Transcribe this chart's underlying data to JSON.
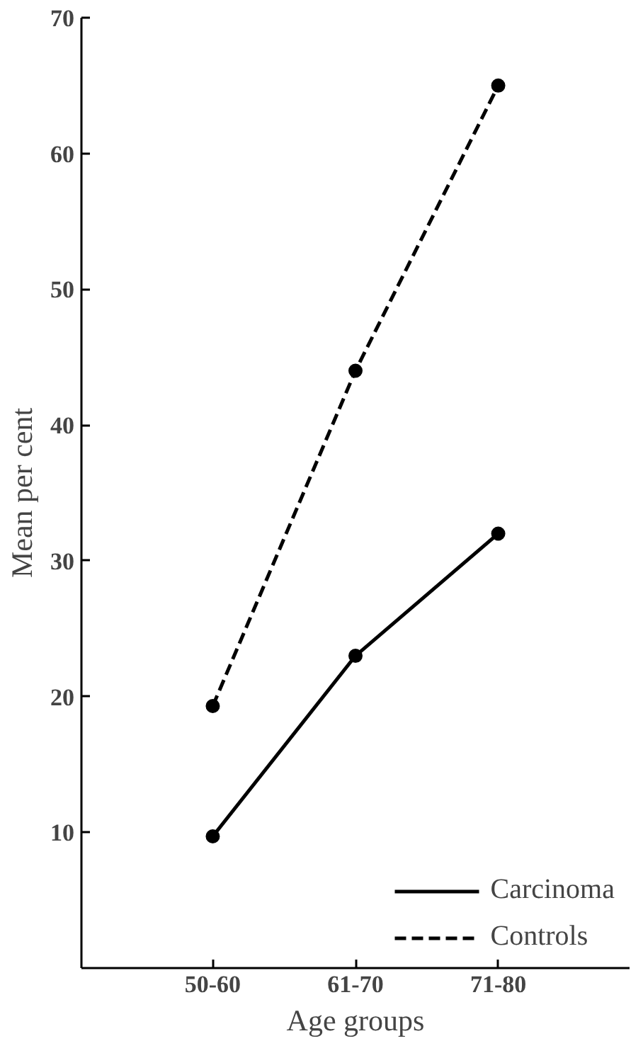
{
  "chart_data": {
    "type": "line",
    "xlabel": "Age groups",
    "ylabel": "Mean per cent",
    "categories": [
      "50-60",
      "61-70",
      "71-80"
    ],
    "series": [
      {
        "name": "Carcinoma",
        "color": "#000000",
        "values": [
          9.7,
          23,
          32
        ],
        "line_style": "solid"
      },
      {
        "name": "Controls",
        "color": "#000000",
        "values": [
          19.3,
          44,
          65
        ],
        "line_style": "dashed"
      }
    ],
    "ylim": [
      0,
      70
    ],
    "yticks": [
      10,
      20,
      30,
      40,
      50,
      60,
      70
    ],
    "marker": "circle",
    "legend": "bottom right",
    "grid": false
  }
}
